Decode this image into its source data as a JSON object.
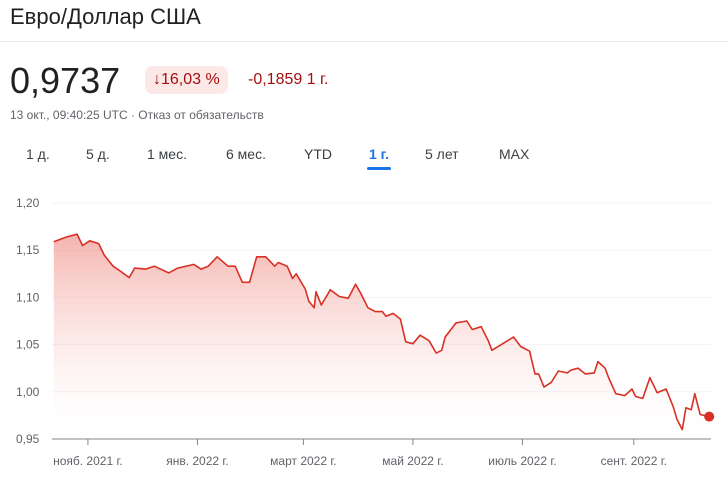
{
  "header": {
    "title": "Евро/Доллар США"
  },
  "quote": {
    "price": "0,9737",
    "change_percent": "16,03 %",
    "change_arrow": "↓",
    "change_abs": "-0,1859 1 г.",
    "meta": "13 окт., 09:40:25 UTC · Отказ от обязательств"
  },
  "tabs": [
    {
      "label": "1 д."
    },
    {
      "label": "5 д."
    },
    {
      "label": "1 мес."
    },
    {
      "label": "6 мес."
    },
    {
      "label": "YTD"
    },
    {
      "label": "1 г.",
      "active": true
    },
    {
      "label": "5 лет"
    },
    {
      "label": "MAX"
    }
  ],
  "colors": {
    "line": "#d93025",
    "badge_bg": "#fce8e6",
    "negative": "#a50e0e",
    "accent": "#1a73e8"
  },
  "chart_data": {
    "type": "area",
    "ylim": [
      0.95,
      1.2
    ],
    "y_ticks": [
      {
        "v": 1.2,
        "label": "1,20"
      },
      {
        "v": 1.15,
        "label": "1,15"
      },
      {
        "v": 1.1,
        "label": "1,10"
      },
      {
        "v": 1.05,
        "label": "1,05"
      },
      {
        "v": 1.0,
        "label": "1,00"
      },
      {
        "v": 0.95,
        "label": "0,95"
      }
    ],
    "x_range": [
      "2021-10-12",
      "2022-10-14"
    ],
    "x_ticks": [
      {
        "d": "2021-11-01",
        "label": "нояб. 2021 г."
      },
      {
        "d": "2022-01-01",
        "label": "янв. 2022 г."
      },
      {
        "d": "2022-03-01",
        "label": "март 2022 г."
      },
      {
        "d": "2022-05-01",
        "label": "май 2022 г."
      },
      {
        "d": "2022-07-01",
        "label": "июль 2022 г."
      },
      {
        "d": "2022-09-01",
        "label": "сент. 2022 г."
      }
    ],
    "grid": true,
    "series": [
      {
        "points": [
          [
            "2021-10-13",
            1.159
          ],
          [
            "2021-10-20",
            1.164
          ],
          [
            "2021-10-26",
            1.167
          ],
          [
            "2021-10-29",
            1.155
          ],
          [
            "2021-11-02",
            1.16
          ],
          [
            "2021-11-07",
            1.157
          ],
          [
            "2021-11-10",
            1.145
          ],
          [
            "2021-11-15",
            1.133
          ],
          [
            "2021-11-19",
            1.128
          ],
          [
            "2021-11-24",
            1.121
          ],
          [
            "2021-11-27",
            1.131
          ],
          [
            "2021-12-03",
            1.13
          ],
          [
            "2021-12-08",
            1.133
          ],
          [
            "2021-12-16",
            1.126
          ],
          [
            "2021-12-21",
            1.131
          ],
          [
            "2021-12-30",
            1.135
          ],
          [
            "2022-01-03",
            1.13
          ],
          [
            "2022-01-07",
            1.133
          ],
          [
            "2022-01-12",
            1.143
          ],
          [
            "2022-01-18",
            1.133
          ],
          [
            "2022-01-22",
            1.133
          ],
          [
            "2022-01-26",
            1.116
          ],
          [
            "2022-01-30",
            1.116
          ],
          [
            "2022-02-03",
            1.143
          ],
          [
            "2022-02-08",
            1.143
          ],
          [
            "2022-02-13",
            1.133
          ],
          [
            "2022-02-15",
            1.137
          ],
          [
            "2022-02-20",
            1.133
          ],
          [
            "2022-02-23",
            1.12
          ],
          [
            "2022-02-25",
            1.125
          ],
          [
            "2022-03-02",
            1.109
          ],
          [
            "2022-03-04",
            1.096
          ],
          [
            "2022-03-07",
            1.089
          ],
          [
            "2022-03-08",
            1.106
          ],
          [
            "2022-03-11",
            1.092
          ],
          [
            "2022-03-16",
            1.108
          ],
          [
            "2022-03-21",
            1.101
          ],
          [
            "2022-03-26",
            1.099
          ],
          [
            "2022-03-30",
            1.114
          ],
          [
            "2022-04-02",
            1.104
          ],
          [
            "2022-04-06",
            1.089
          ],
          [
            "2022-04-10",
            1.085
          ],
          [
            "2022-04-14",
            1.085
          ],
          [
            "2022-04-16",
            1.08
          ],
          [
            "2022-04-20",
            1.083
          ],
          [
            "2022-04-24",
            1.077
          ],
          [
            "2022-04-27",
            1.053
          ],
          [
            "2022-05-01",
            1.051
          ],
          [
            "2022-05-05",
            1.06
          ],
          [
            "2022-05-10",
            1.054
          ],
          [
            "2022-05-14",
            1.041
          ],
          [
            "2022-05-17",
            1.044
          ],
          [
            "2022-05-19",
            1.058
          ],
          [
            "2022-05-25",
            1.073
          ],
          [
            "2022-05-31",
            1.075
          ],
          [
            "2022-06-03",
            1.066
          ],
          [
            "2022-06-08",
            1.069
          ],
          [
            "2022-06-12",
            1.054
          ],
          [
            "2022-06-14",
            1.044
          ],
          [
            "2022-06-20",
            1.051
          ],
          [
            "2022-06-26",
            1.058
          ],
          [
            "2022-06-30",
            1.048
          ],
          [
            "2022-07-05",
            1.043
          ],
          [
            "2022-07-08",
            1.019
          ],
          [
            "2022-07-10",
            1.019
          ],
          [
            "2022-07-13",
            1.005
          ],
          [
            "2022-07-17",
            1.01
          ],
          [
            "2022-07-21",
            1.022
          ],
          [
            "2022-07-26",
            1.02
          ],
          [
            "2022-07-28",
            1.023
          ],
          [
            "2022-08-01",
            1.025
          ],
          [
            "2022-08-05",
            1.019
          ],
          [
            "2022-08-10",
            1.02
          ],
          [
            "2022-08-12",
            1.032
          ],
          [
            "2022-08-16",
            1.025
          ],
          [
            "2022-08-18",
            1.015
          ],
          [
            "2022-08-22",
            0.998
          ],
          [
            "2022-08-27",
            0.996
          ],
          [
            "2022-08-31",
            1.003
          ],
          [
            "2022-09-02",
            0.995
          ],
          [
            "2022-09-06",
            0.993
          ],
          [
            "2022-09-10",
            1.015
          ],
          [
            "2022-09-14",
            0.999
          ],
          [
            "2022-09-19",
            1.003
          ],
          [
            "2022-09-23",
            0.984
          ],
          [
            "2022-09-25",
            0.971
          ],
          [
            "2022-09-28",
            0.96
          ],
          [
            "2022-09-30",
            0.983
          ],
          [
            "2022-10-03",
            0.981
          ],
          [
            "2022-10-05",
            0.998
          ],
          [
            "2022-10-08",
            0.976
          ],
          [
            "2022-10-13",
            0.9737
          ]
        ]
      }
    ]
  }
}
